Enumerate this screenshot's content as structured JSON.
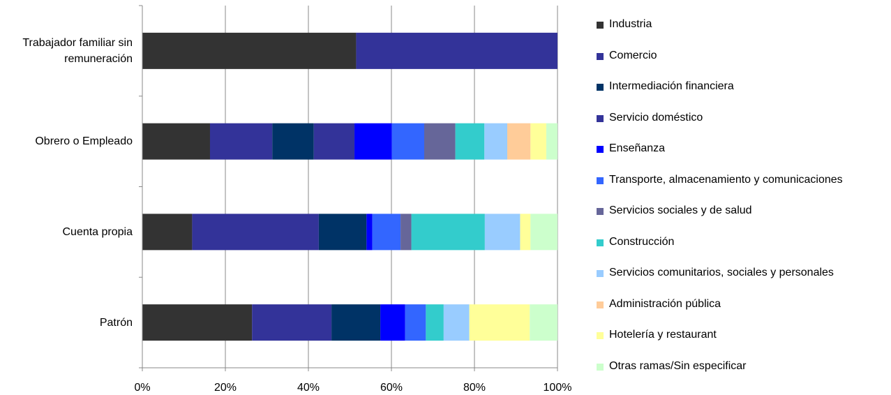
{
  "chart_data": {
    "type": "bar",
    "orientation": "horizontal",
    "stacked": "percent",
    "categories": [
      "Trabajador familiar sin remuneración",
      "Obrero o Empleado",
      "Cuenta propia",
      "Patrón"
    ],
    "category_lines": [
      [
        "Trabajador familiar sin",
        "remuneración"
      ],
      [
        "Obrero o Empleado"
      ],
      [
        "Cuenta propia"
      ],
      [
        "Patrón"
      ]
    ],
    "x_ticks": [
      "0%",
      "20%",
      "40%",
      "60%",
      "80%",
      "100%"
    ],
    "xlim": [
      0,
      100
    ],
    "grid": true,
    "legend_position": "right",
    "series": [
      {
        "name": "Industria",
        "color": "#333333",
        "values": [
          51.5,
          16.3,
          12.0,
          26.5
        ]
      },
      {
        "name": "Comercio",
        "color": "#333399",
        "values": [
          48.5,
          15.0,
          30.5,
          19.2
        ]
      },
      {
        "name": "Intermediación financiera",
        "color": "#003366",
        "values": [
          0,
          10.0,
          11.5,
          11.8
        ]
      },
      {
        "name": "Servicio doméstico",
        "color": "#333399",
        "values": [
          0,
          9.8,
          0,
          0
        ]
      },
      {
        "name": "Enseñanza",
        "color": "#0000ff",
        "values": [
          0,
          9.0,
          1.4,
          6.0
        ]
      },
      {
        "name": "Transporte, almacenamiento y comunicaciones",
        "color": "#3366ff",
        "values": [
          0,
          7.8,
          6.8,
          5.0
        ]
      },
      {
        "name": "Servicios sociales y de salud",
        "color": "#666699",
        "values": [
          0,
          7.5,
          2.6,
          0
        ]
      },
      {
        "name": "Construcción",
        "color": "#33cccc",
        "values": [
          0,
          7.0,
          17.7,
          4.3
        ]
      },
      {
        "name": "Servicios comunitarios, sociales y personales",
        "color": "#99ccff",
        "values": [
          0,
          5.5,
          8.5,
          6.2
        ]
      },
      {
        "name": "Administración pública",
        "color": "#ffcc99",
        "values": [
          0,
          5.6,
          0,
          0
        ]
      },
      {
        "name": "Hotelería y restaurant",
        "color": "#ffff99",
        "values": [
          0,
          3.8,
          2.5,
          14.6
        ]
      },
      {
        "name": "Otras ramas/Sin especificar",
        "color": "#ccffcc",
        "values": [
          0,
          2.7,
          6.5,
          6.7
        ]
      }
    ]
  }
}
